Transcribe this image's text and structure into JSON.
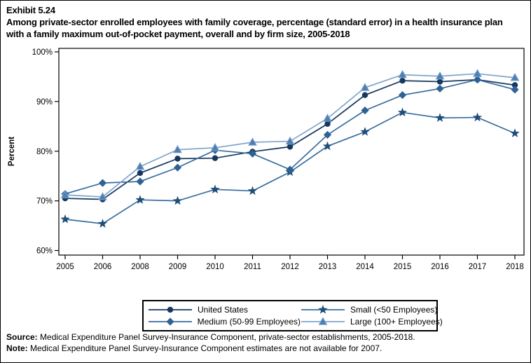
{
  "header": {
    "exhibit_label": "Exhibit 5.24",
    "title": "Among private-sector enrolled employees with family coverage, percentage (standard error) in a health insurance plan with a family maximum out-of-pocket payment, overall and by firm size, 2005-2018"
  },
  "chart_data": {
    "type": "line",
    "title": "Percentage in a health insurance plan with a family maximum out-of-pocket payment, overall and by firm size, 2005-2018",
    "xlabel": "",
    "ylabel": "Percent",
    "ylim": [
      60,
      100
    ],
    "ytick_labels": [
      "60%",
      "70%",
      "80%",
      "90%",
      "100%"
    ],
    "grid": false,
    "legend_position": "bottom",
    "categories": [
      "2005",
      "2006",
      "2008",
      "2009",
      "2010",
      "2011",
      "2012",
      "2013",
      "2014",
      "2015",
      "2016",
      "2017",
      "2018"
    ],
    "series": [
      {
        "name": "United States",
        "marker": "circle",
        "marker_color": "#17375E",
        "line_color": "#17375E",
        "values": [
          70.5,
          70.3,
          75.6,
          78.5,
          78.6,
          79.9,
          80.9,
          85.5,
          91.3,
          94.2,
          94.0,
          94.4,
          93.3
        ]
      },
      {
        "name": "Small (<50 Employees)",
        "marker": "star",
        "marker_color": "#1F4E79",
        "line_color": "#376C9F",
        "values": [
          66.3,
          65.4,
          70.2,
          70.0,
          72.3,
          72.0,
          75.8,
          81.0,
          83.9,
          87.8,
          86.7,
          86.8,
          83.6
        ]
      },
      {
        "name": "Medium (50-99 Employees)",
        "marker": "diamond",
        "marker_color": "#2E6295",
        "line_color": "#376C9F",
        "values": [
          71.4,
          73.6,
          73.9,
          76.7,
          80.2,
          79.5,
          76.3,
          83.3,
          88.2,
          91.3,
          92.6,
          94.4,
          92.4
        ]
      },
      {
        "name": "Large (100+ Employees)",
        "marker": "triangle",
        "marker_color": "#4E7FB2",
        "line_color": "#7FA5CC",
        "values": [
          71.2,
          70.8,
          76.9,
          80.3,
          80.7,
          81.8,
          82.0,
          86.6,
          92.8,
          95.4,
          95.1,
          95.6,
          94.8
        ]
      }
    ]
  },
  "footer": {
    "source_label": "Source:",
    "source_text": " Medical Expenditure Panel Survey-Insurance Component, private-sector establishments, 2005-2018.",
    "note_label": "Note:",
    "note_text": " Medical Expenditure Panel Survey-Insurance Component estimates are not available for 2007."
  }
}
